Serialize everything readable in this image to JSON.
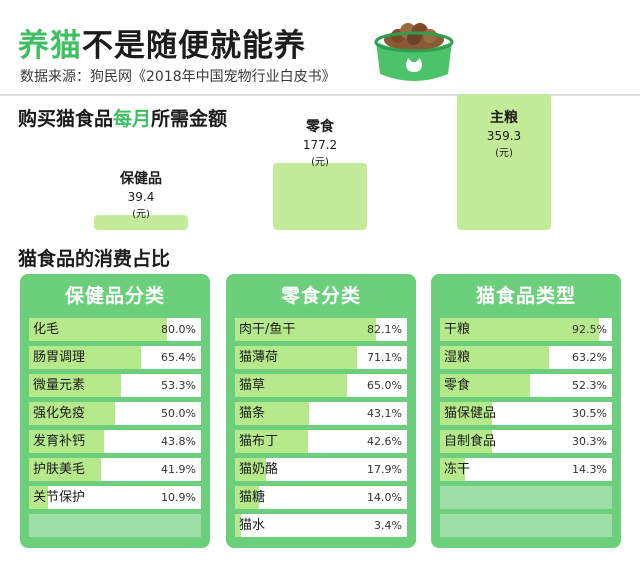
{
  "header": {
    "title_accent": "养猫",
    "title_rest": "不是随便就能养",
    "source": "数据来源：狗民网《2018年中国宠物行业白皮书》"
  },
  "spend": {
    "title_pre": "购买猫食品",
    "title_accent": "每月",
    "title_post": "所需金额"
  },
  "share": {
    "title": "猫食品的消费占比"
  },
  "colors": {
    "accent": "#3fbf62",
    "panel": "#6ccf7b",
    "bar_fill": "#b6e88c",
    "spend_bar": "#c4eb9a",
    "empty_row": "#9fdea6"
  },
  "chart_data": [
    {
      "type": "bar",
      "title": "购买猫食品每月所需金额",
      "categories": [
        "保健品",
        "零食",
        "主粮"
      ],
      "values": [
        39.4,
        177.2,
        359.3
      ],
      "value_labels": [
        "39.4",
        "177.2",
        "359.3"
      ],
      "unit_label": "(元)",
      "ylim": [
        0,
        359.3
      ],
      "grid": false
    },
    {
      "type": "bar",
      "title": "保健品分类",
      "categories": [
        "化毛",
        "肠胃调理",
        "微量元素",
        "强化免疫",
        "发育补钙",
        "护肤美毛",
        "关节保护"
      ],
      "values": [
        80.0,
        65.4,
        53.3,
        50.0,
        43.8,
        41.9,
        10.9
      ],
      "value_labels": [
        "80.0%",
        "65.4%",
        "53.3%",
        "50.0%",
        "43.8%",
        "41.9%",
        "10.9%"
      ],
      "xlim": [
        0,
        100
      ],
      "empty_rows": 1
    },
    {
      "type": "bar",
      "title": "零食分类",
      "categories": [
        "肉干/鱼干",
        "猫薄荷",
        "猫草",
        "猫条",
        "猫布丁",
        "猫奶酪",
        "猫糖",
        "猫水"
      ],
      "values": [
        82.1,
        71.1,
        65.0,
        43.1,
        42.6,
        17.9,
        14.0,
        3.4
      ],
      "value_labels": [
        "82.1%",
        "71.1%",
        "65.0%",
        "43.1%",
        "42.6%",
        "17.9%",
        "14.0%",
        "3.4%"
      ],
      "xlim": [
        0,
        100
      ],
      "empty_rows": 0
    },
    {
      "type": "bar",
      "title": "猫食品类型",
      "categories": [
        "干粮",
        "湿粮",
        "零食",
        "猫保健品",
        "自制食品",
        "冻干"
      ],
      "values": [
        92.5,
        63.2,
        52.3,
        30.5,
        30.3,
        14.3
      ],
      "value_labels": [
        "92.5%",
        "63.2%",
        "52.3%",
        "30.5%",
        "30.3%",
        "14.3%"
      ],
      "xlim": [
        0,
        100
      ],
      "empty_rows": 2
    }
  ]
}
